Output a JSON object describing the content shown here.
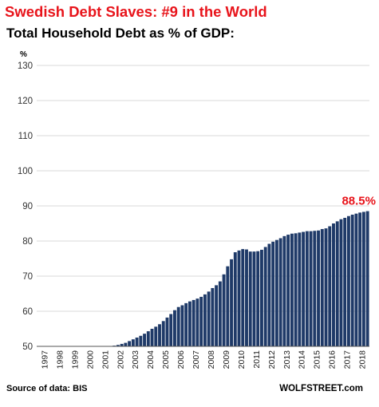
{
  "header": {
    "title": "Swedish Debt Slaves: #9 in the World",
    "subtitle": "Total Household Debt as % of GDP:"
  },
  "footer": {
    "source": "Source of data: BIS",
    "brand": "WOLFSTREET.com"
  },
  "colors": {
    "title": "#e8141b",
    "bar": "#1f3a68",
    "annotation": "#e8141b",
    "grid": "#d9d9d9"
  },
  "chart_data": {
    "type": "bar",
    "ylabel": "%",
    "ylim": [
      50,
      130
    ],
    "yticks": [
      50,
      60,
      70,
      80,
      90,
      100,
      110,
      120,
      130
    ],
    "grid": true,
    "x_labels": [
      "1997",
      "1998",
      "1999",
      "2000",
      "2001",
      "2002",
      "2003",
      "2004",
      "2005",
      "2006",
      "2007",
      "2008",
      "2009",
      "2010",
      "2011",
      "2012",
      "2013",
      "2014",
      "2015",
      "2016",
      "2017",
      "2018"
    ],
    "frequency": "quarterly",
    "values": [
      46.5,
      46.7,
      46.9,
      47.1,
      47.3,
      47.5,
      47.7,
      47.9,
      48.1,
      48.3,
      48.5,
      48.7,
      48.9,
      49.1,
      49.3,
      49.5,
      49.7,
      49.8,
      49.9,
      50.0,
      50.2,
      50.4,
      50.7,
      51.0,
      51.5,
      52.0,
      52.5,
      53.0,
      53.6,
      54.3,
      55.0,
      55.6,
      56.3,
      57.2,
      58.2,
      59.2,
      60.3,
      61.2,
      61.7,
      62.3,
      62.8,
      63.2,
      63.6,
      64.1,
      64.8,
      65.6,
      66.6,
      67.4,
      68.5,
      70.5,
      72.8,
      74.8,
      76.8,
      77.3,
      77.7,
      77.6,
      77.0,
      77.0,
      77.1,
      77.5,
      78.3,
      79.2,
      79.8,
      80.3,
      80.8,
      81.4,
      81.8,
      82.1,
      82.2,
      82.4,
      82.6,
      82.8,
      82.8,
      82.9,
      83.0,
      83.4,
      83.6,
      84.2,
      85.0,
      85.6,
      86.2,
      86.6,
      87.1,
      87.5,
      87.8,
      88.1,
      88.3,
      88.5
    ],
    "annotation": "88.5%"
  }
}
